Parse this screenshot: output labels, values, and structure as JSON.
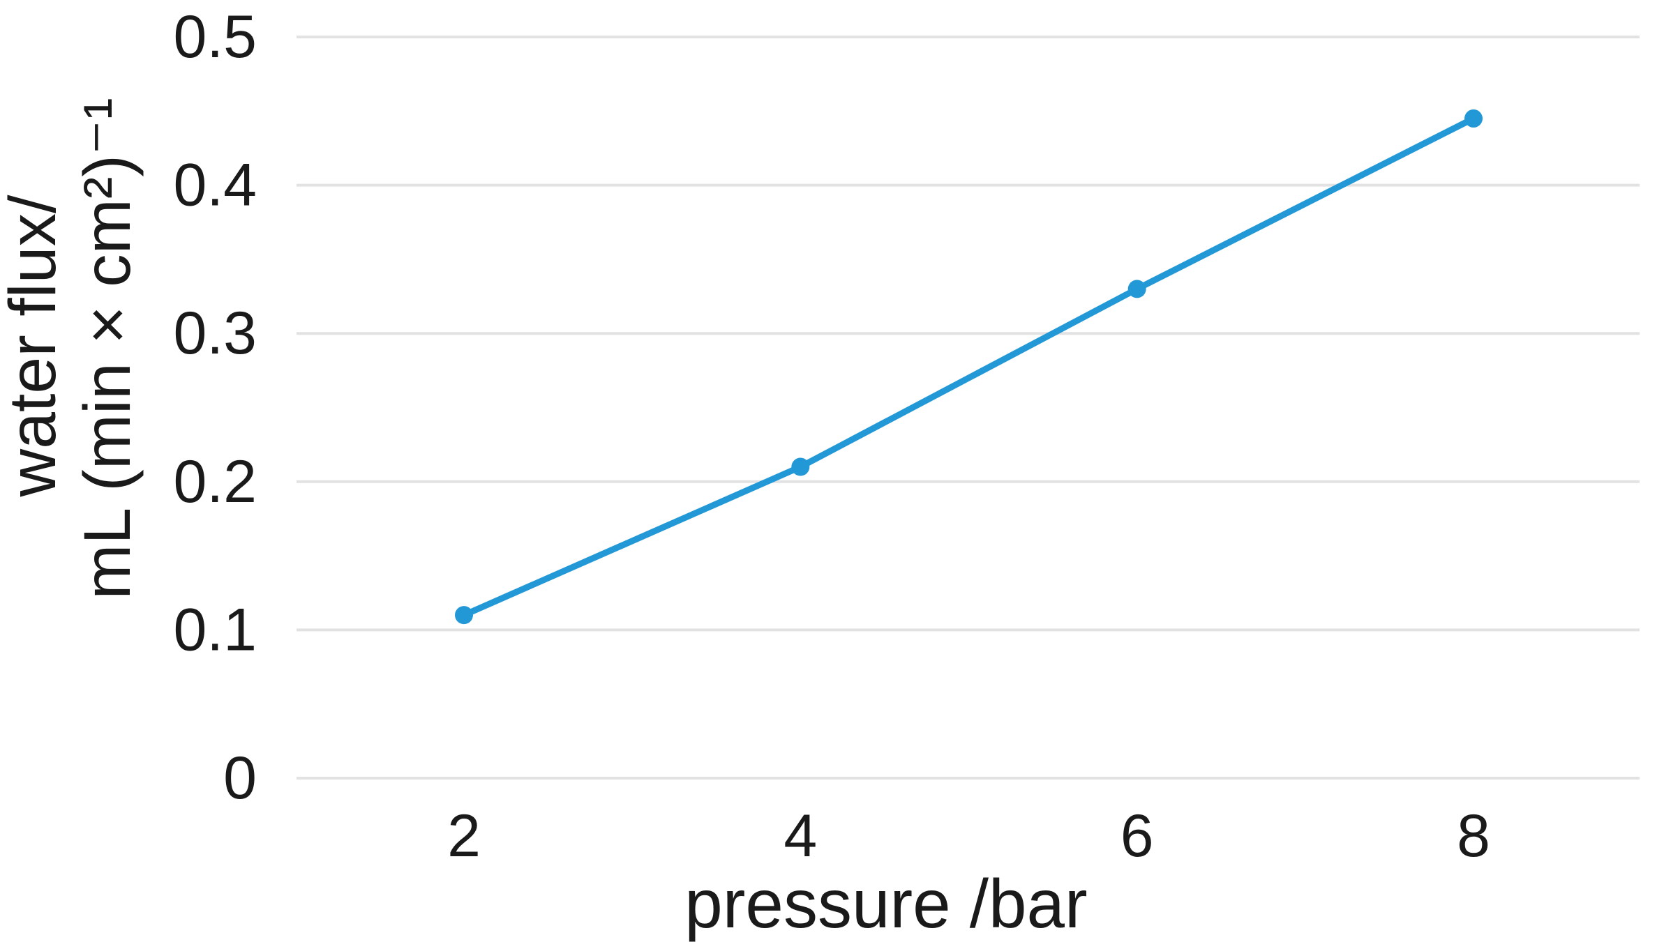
{
  "chart_data": {
    "type": "line",
    "title": "",
    "xlabel": "pressure /bar",
    "ylabel_line1": "water flux/",
    "ylabel_line2": "mL (min × cm²)⁻¹",
    "x": [
      2,
      4,
      6,
      8
    ],
    "values": [
      0.11,
      0.21,
      0.33,
      0.445
    ],
    "xticks": [
      "2",
      "4",
      "6",
      "8"
    ],
    "yticks": [
      "0",
      "0.1",
      "0.2",
      "0.3",
      "0.4",
      "0.5"
    ],
    "ytick_values": [
      0,
      0.1,
      0.2,
      0.3,
      0.4,
      0.5
    ],
    "xlim": [
      2,
      8
    ],
    "ylim": [
      0,
      0.5
    ],
    "grid": "horizontal",
    "legend": "none",
    "marker": "circle",
    "colors": {
      "line": "#2298d6",
      "gridline": "#e2e2e2",
      "text": "#1a1a1a"
    }
  }
}
